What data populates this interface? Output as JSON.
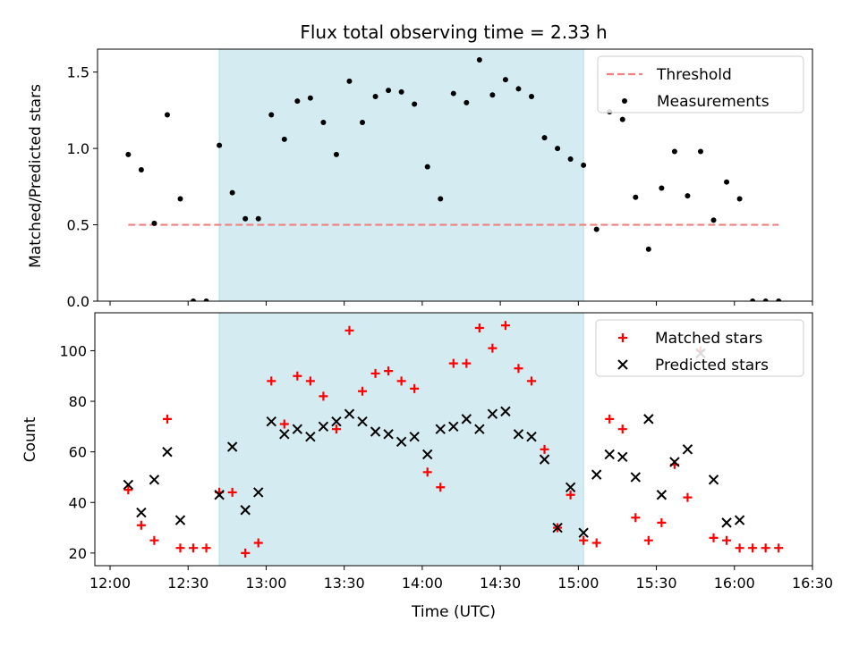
{
  "chart_data": [
    {
      "type": "scatter",
      "title": "Flux total observing time = 2.33 h",
      "ylabel": "Matched/Predicted stars",
      "xlabel": "",
      "xlim": [
        "12:00",
        "16:30"
      ],
      "ylim": [
        0,
        1.65
      ],
      "yticks": [
        "0.0",
        "0.5",
        "1.0",
        "1.5"
      ],
      "legend_position": "top-right",
      "shaded_region": {
        "from": "12:42",
        "to": "15:02",
        "color": "#d4ebf1"
      },
      "series": [
        {
          "name": "Threshold",
          "style": "dashed-line",
          "color": "#f27f7f",
          "points": [
            [
              "12:07",
              0.5
            ],
            [
              "16:17",
              0.5
            ]
          ]
        },
        {
          "name": "Measurements",
          "style": "dot",
          "color": "#000000",
          "points": [
            [
              "12:07",
              0.96
            ],
            [
              "12:12",
              0.86
            ],
            [
              "12:17",
              0.51
            ],
            [
              "12:22",
              1.22
            ],
            [
              "12:27",
              0.67
            ],
            [
              "12:32",
              0.0
            ],
            [
              "12:37",
              0.0
            ],
            [
              "12:42",
              1.02
            ],
            [
              "12:47",
              0.71
            ],
            [
              "12:52",
              0.54
            ],
            [
              "12:57",
              0.54
            ],
            [
              "13:02",
              1.22
            ],
            [
              "13:07",
              1.06
            ],
            [
              "13:12",
              1.31
            ],
            [
              "13:17",
              1.33
            ],
            [
              "13:22",
              1.17
            ],
            [
              "13:27",
              0.96
            ],
            [
              "13:32",
              1.44
            ],
            [
              "13:37",
              1.17
            ],
            [
              "13:42",
              1.34
            ],
            [
              "13:47",
              1.38
            ],
            [
              "13:52",
              1.37
            ],
            [
              "13:57",
              1.29
            ],
            [
              "14:02",
              0.88
            ],
            [
              "14:07",
              0.67
            ],
            [
              "14:12",
              1.36
            ],
            [
              "14:17",
              1.3
            ],
            [
              "14:22",
              1.58
            ],
            [
              "14:27",
              1.35
            ],
            [
              "14:32",
              1.45
            ],
            [
              "14:37",
              1.39
            ],
            [
              "14:42",
              1.34
            ],
            [
              "14:47",
              1.07
            ],
            [
              "14:52",
              1.0
            ],
            [
              "14:57",
              0.93
            ],
            [
              "15:02",
              0.89
            ],
            [
              "15:07",
              0.47
            ],
            [
              "15:12",
              1.24
            ],
            [
              "15:17",
              1.19
            ],
            [
              "15:22",
              0.68
            ],
            [
              "15:27",
              0.34
            ],
            [
              "15:32",
              0.74
            ],
            [
              "15:37",
              0.98
            ],
            [
              "15:42",
              0.69
            ],
            [
              "15:47",
              0.98
            ],
            [
              "15:52",
              0.53
            ],
            [
              "15:57",
              0.78
            ],
            [
              "16:02",
              0.67
            ],
            [
              "16:07",
              0.0
            ],
            [
              "16:12",
              0.0
            ],
            [
              "16:17",
              0.0
            ]
          ]
        }
      ]
    },
    {
      "type": "scatter",
      "title": "",
      "ylabel": "Count",
      "xlabel": "Time (UTC)",
      "xlim": [
        "12:00",
        "16:30"
      ],
      "xticks": [
        "12:00",
        "12:30",
        "13:00",
        "13:30",
        "14:00",
        "14:30",
        "15:00",
        "15:30",
        "16:00",
        "16:30"
      ],
      "ylim": [
        15,
        115
      ],
      "yticks": [
        "20",
        "40",
        "60",
        "80",
        "100"
      ],
      "legend_position": "top-right",
      "shaded_region": {
        "from": "12:42",
        "to": "15:02",
        "color": "#d4ebf1"
      },
      "series": [
        {
          "name": "Matched stars",
          "style": "plus",
          "color": "#ff0000",
          "points": [
            [
              "12:07",
              45
            ],
            [
              "12:12",
              31
            ],
            [
              "12:17",
              25
            ],
            [
              "12:22",
              73
            ],
            [
              "12:27",
              22
            ],
            [
              "12:32",
              22
            ],
            [
              "12:37",
              22
            ],
            [
              "12:42",
              44
            ],
            [
              "12:47",
              44
            ],
            [
              "12:52",
              20
            ],
            [
              "12:57",
              24
            ],
            [
              "13:02",
              88
            ],
            [
              "13:07",
              71
            ],
            [
              "13:12",
              90
            ],
            [
              "13:17",
              88
            ],
            [
              "13:22",
              82
            ],
            [
              "13:27",
              69
            ],
            [
              "13:32",
              108
            ],
            [
              "13:37",
              84
            ],
            [
              "13:42",
              91
            ],
            [
              "13:47",
              92
            ],
            [
              "13:52",
              88
            ],
            [
              "13:57",
              85
            ],
            [
              "14:02",
              52
            ],
            [
              "14:07",
              46
            ],
            [
              "14:12",
              95
            ],
            [
              "14:17",
              95
            ],
            [
              "14:22",
              109
            ],
            [
              "14:27",
              101
            ],
            [
              "14:32",
              110
            ],
            [
              "14:37",
              93
            ],
            [
              "14:42",
              88
            ],
            [
              "14:47",
              61
            ],
            [
              "14:52",
              30
            ],
            [
              "14:57",
              43
            ],
            [
              "15:02",
              25
            ],
            [
              "15:07",
              24
            ],
            [
              "15:12",
              73
            ],
            [
              "15:17",
              69
            ],
            [
              "15:22",
              34
            ],
            [
              "15:27",
              25
            ],
            [
              "15:32",
              32
            ],
            [
              "15:37",
              55
            ],
            [
              "15:42",
              42
            ],
            [
              "15:47",
              100
            ],
            [
              "15:52",
              26
            ],
            [
              "15:57",
              25
            ],
            [
              "16:02",
              22
            ],
            [
              "16:07",
              22
            ],
            [
              "16:12",
              22
            ],
            [
              "16:17",
              22
            ]
          ]
        },
        {
          "name": "Predicted stars",
          "style": "x",
          "color": "#000000",
          "points": [
            [
              "12:07",
              47
            ],
            [
              "12:12",
              36
            ],
            [
              "12:17",
              49
            ],
            [
              "12:22",
              60
            ],
            [
              "12:27",
              33
            ],
            [
              "12:42",
              43
            ],
            [
              "12:47",
              62
            ],
            [
              "12:52",
              37
            ],
            [
              "12:57",
              44
            ],
            [
              "13:02",
              72
            ],
            [
              "13:07",
              67
            ],
            [
              "13:12",
              69
            ],
            [
              "13:17",
              66
            ],
            [
              "13:22",
              70
            ],
            [
              "13:27",
              72
            ],
            [
              "13:32",
              75
            ],
            [
              "13:37",
              72
            ],
            [
              "13:42",
              68
            ],
            [
              "13:47",
              67
            ],
            [
              "13:52",
              64
            ],
            [
              "13:57",
              66
            ],
            [
              "14:02",
              59
            ],
            [
              "14:07",
              69
            ],
            [
              "14:12",
              70
            ],
            [
              "14:17",
              73
            ],
            [
              "14:22",
              69
            ],
            [
              "14:27",
              75
            ],
            [
              "14:32",
              76
            ],
            [
              "14:37",
              67
            ],
            [
              "14:42",
              66
            ],
            [
              "14:47",
              57
            ],
            [
              "14:52",
              30
            ],
            [
              "14:57",
              46
            ],
            [
              "15:02",
              28
            ],
            [
              "15:07",
              51
            ],
            [
              "15:12",
              59
            ],
            [
              "15:17",
              58
            ],
            [
              "15:22",
              50
            ],
            [
              "15:27",
              73
            ],
            [
              "15:32",
              43
            ],
            [
              "15:37",
              56
            ],
            [
              "15:42",
              61
            ],
            [
              "15:47",
              99
            ],
            [
              "15:52",
              49
            ],
            [
              "15:57",
              32
            ],
            [
              "16:02",
              33
            ]
          ]
        }
      ]
    }
  ]
}
